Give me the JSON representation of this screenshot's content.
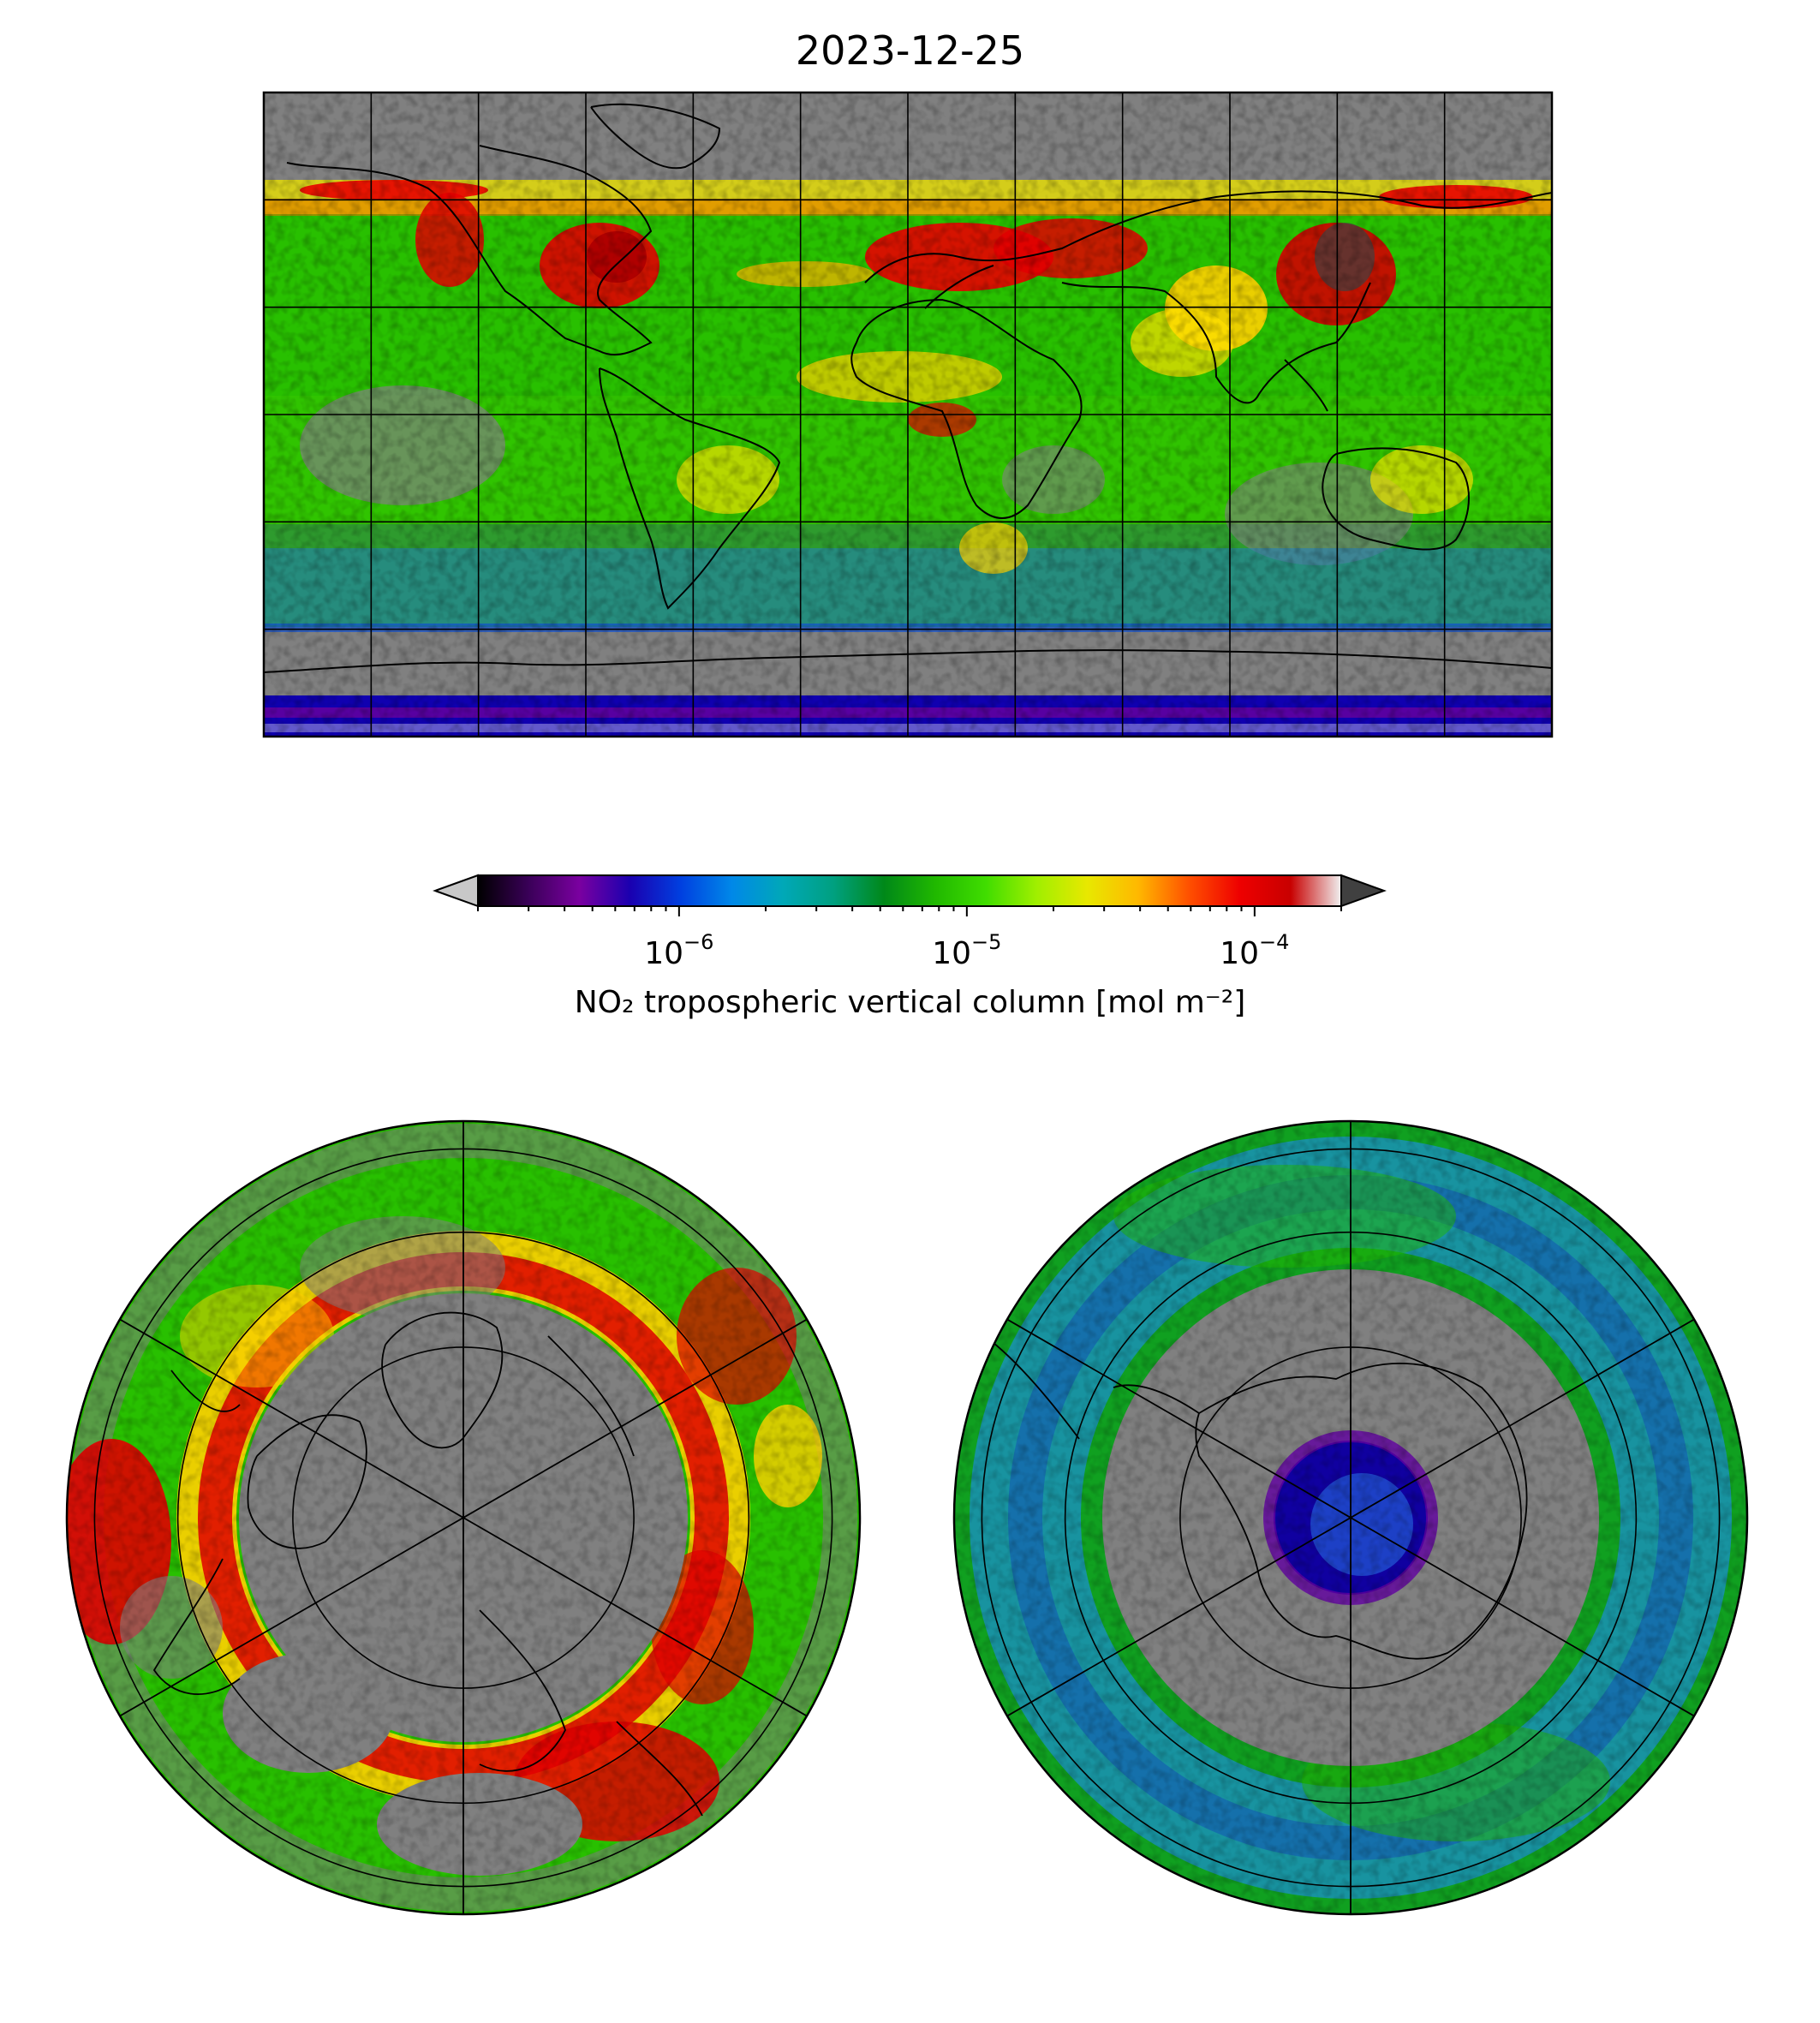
{
  "title": "2023-12-25",
  "colorbar": {
    "label": "NO₂ tropospheric vertical column [mol m⁻²]",
    "scale": "log",
    "range": [
      2e-07,
      0.0002
    ],
    "extend": "both",
    "ticks": [
      {
        "value": 1e-06,
        "base": "10",
        "exp": "−6"
      },
      {
        "value": 1e-05,
        "base": "10",
        "exp": "−5"
      },
      {
        "value": 0.0001,
        "base": "10",
        "exp": "−4"
      }
    ],
    "colors": [
      "#000000",
      "#3a0058",
      "#7a00a0",
      "#1a00b0",
      "#0040e0",
      "#0088e8",
      "#00a8b8",
      "#00a080",
      "#008818",
      "#20b800",
      "#40dd00",
      "#a0ef00",
      "#e8e800",
      "#ffb800",
      "#ff5000",
      "#ee0000",
      "#c80000",
      "#f0f0f0"
    ],
    "under_color": "#c8c8c8",
    "over_color": "#404040"
  },
  "maps": [
    {
      "name": "global",
      "projection": "plate-carree",
      "background": "#808080"
    },
    {
      "name": "north-polar",
      "projection": "north-polar-stereographic",
      "background": "#808080"
    },
    {
      "name": "south-polar",
      "projection": "south-polar-stereographic",
      "background": "#808080"
    }
  ]
}
